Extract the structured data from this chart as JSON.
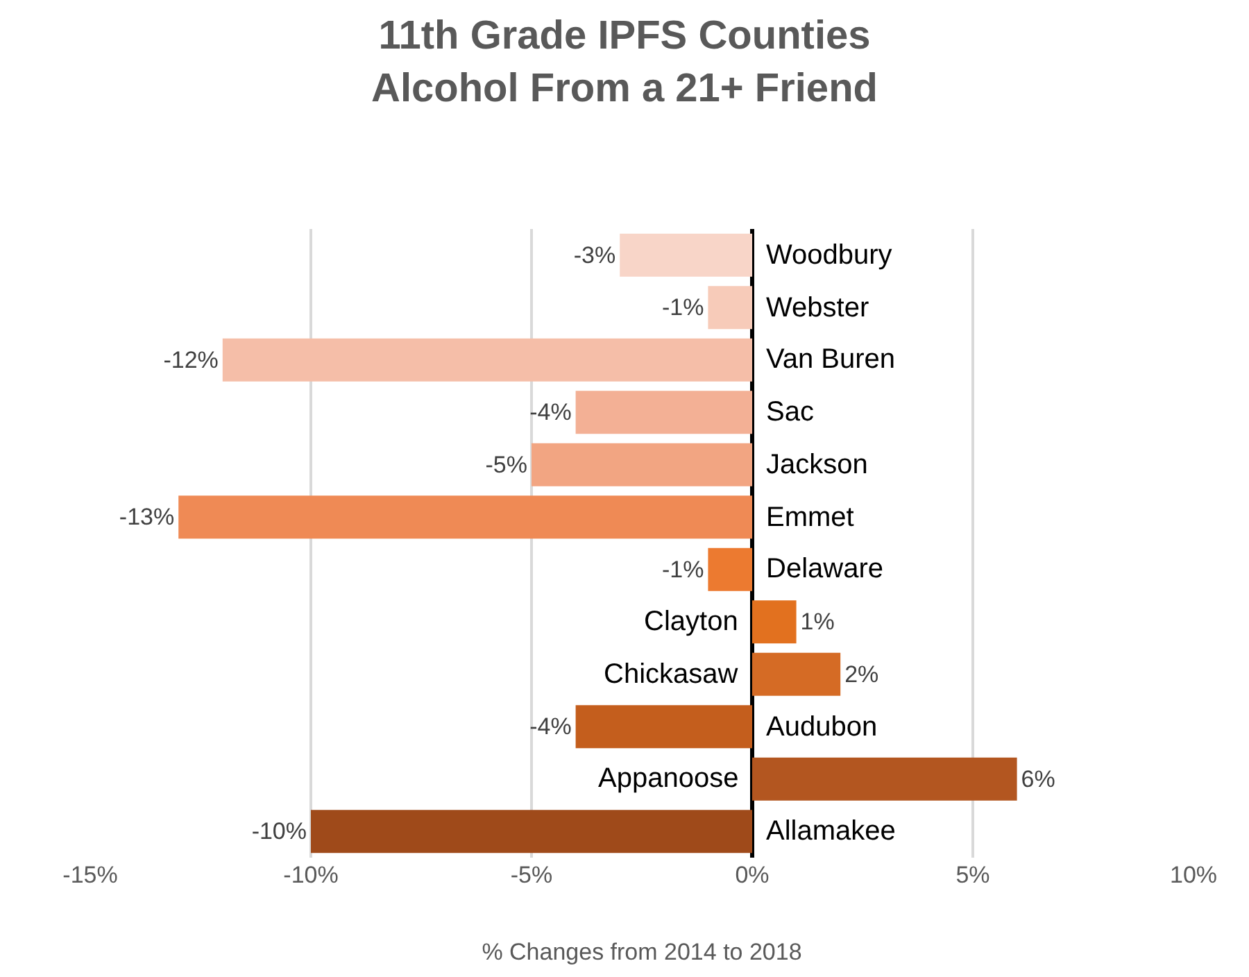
{
  "chart_data": {
    "type": "bar",
    "orientation": "horizontal",
    "title": "11th Grade IPFS Counties\nAlcohol From a 21+ Friend",
    "xlabel": "% Changes from 2014 to 2018",
    "categories": [
      "Woodbury",
      "Webster",
      "Van Buren",
      "Sac",
      "Jackson",
      "Emmet",
      "Delaware",
      "Clayton",
      "Chickasaw",
      "Audubon",
      "Appanoose",
      "Allamakee"
    ],
    "values": [
      -3,
      -1,
      -12,
      -4,
      -5,
      -13,
      -1,
      1,
      2,
      -4,
      6,
      -10
    ],
    "value_labels": [
      "-3%",
      "-1%",
      "-12%",
      "-4%",
      "-5%",
      "-13%",
      "-1%",
      "1%",
      "2%",
      "-4%",
      "6%",
      "-10%"
    ],
    "colors": [
      "#f8d5c8",
      "#f7cbb9",
      "#f5bea8",
      "#f3b095",
      "#f2a582",
      "#ef8a55",
      "#ec7a30",
      "#e2711f",
      "#d56b25",
      "#c45e1d",
      "#b35620",
      "#9f4a1a"
    ],
    "xlim": [
      -15,
      10
    ],
    "xticks": [
      {
        "value": -15,
        "label": "-15%"
      },
      {
        "value": -10,
        "label": "-10%"
      },
      {
        "value": -5,
        "label": "-5%"
      },
      {
        "value": 0,
        "label": "0%"
      },
      {
        "value": 5,
        "label": "5%"
      },
      {
        "value": 10,
        "label": "10%"
      }
    ],
    "grid": "x"
  }
}
